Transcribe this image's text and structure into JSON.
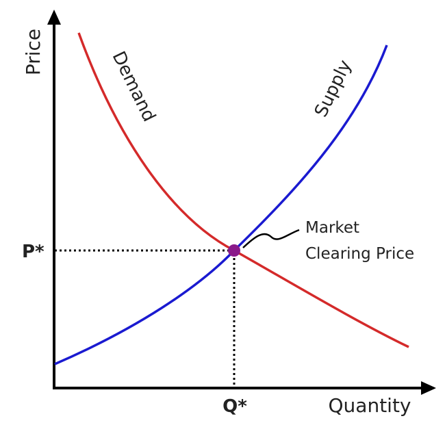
{
  "diagram": {
    "y_axis_label": "Price",
    "x_axis_label": "Quantity",
    "price_marker": "P*",
    "quantity_marker": "Q*",
    "demand_label": "Demand",
    "supply_label": "Supply",
    "annotation_line1": "Market",
    "annotation_line2": "Clearing Price",
    "colors": {
      "demand": "#d42a2a",
      "supply": "#1a1ad0",
      "equilibrium_point": "#8a1a8a",
      "axes": "#000000"
    }
  }
}
